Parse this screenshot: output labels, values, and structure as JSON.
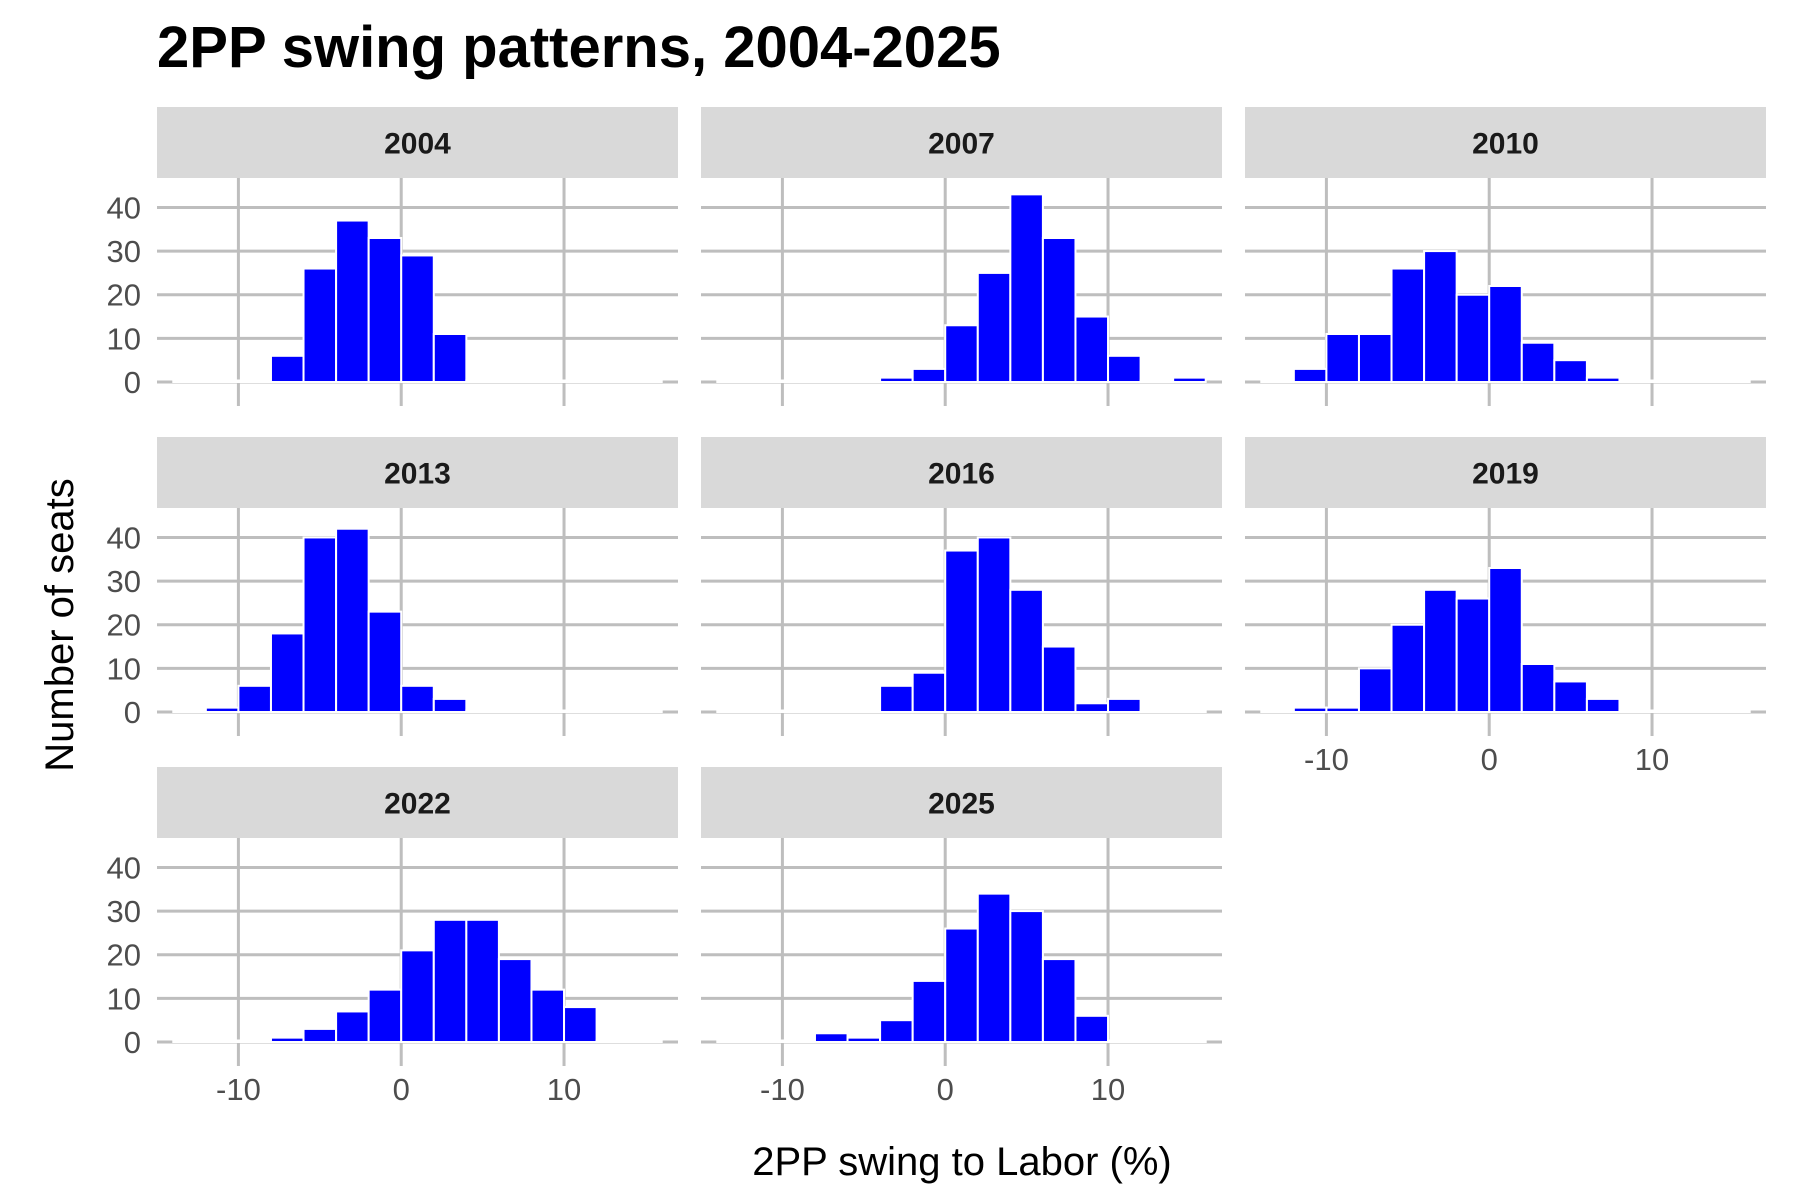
{
  "chart_data": {
    "type": "bar",
    "title": "2PP swing patterns, 2004-2025",
    "xlabel": "2PP swing to Labor (%)",
    "ylabel": "Number of seats",
    "bin_width": 2,
    "bin_centers": [
      -13,
      -11,
      -9,
      -7,
      -5,
      -3,
      -1,
      1,
      3,
      5,
      7,
      9,
      11,
      13,
      15
    ],
    "xlim": [
      -15,
      17
    ],
    "ylim": [
      0,
      44
    ],
    "x_ticks": [
      -10,
      0,
      10
    ],
    "x_tick_labels": [
      "-10",
      "0",
      "10"
    ],
    "y_ticks": [
      0,
      10,
      20,
      30,
      40
    ],
    "y_tick_labels": [
      "0",
      "10",
      "20",
      "30",
      "40"
    ],
    "grid": true,
    "panels": [
      {
        "label": "2004",
        "values": [
          0,
          0,
          0,
          6,
          26,
          37,
          33,
          29,
          11,
          0,
          0,
          0,
          0,
          0,
          0
        ]
      },
      {
        "label": "2007",
        "values": [
          0,
          0,
          0,
          0,
          0,
          1,
          3,
          13,
          25,
          43,
          33,
          15,
          6,
          0,
          1
        ]
      },
      {
        "label": "2010",
        "values": [
          0,
          3,
          11,
          11,
          26,
          30,
          20,
          22,
          9,
          5,
          1,
          0,
          0,
          0,
          0
        ]
      },
      {
        "label": "2013",
        "values": [
          0,
          1,
          6,
          18,
          40,
          42,
          23,
          6,
          3,
          0,
          0,
          0,
          0,
          0,
          0
        ]
      },
      {
        "label": "2016",
        "values": [
          0,
          0,
          0,
          0,
          0,
          6,
          9,
          37,
          40,
          28,
          15,
          2,
          3,
          0,
          0
        ]
      },
      {
        "label": "2019",
        "values": [
          0,
          1,
          1,
          10,
          20,
          28,
          26,
          33,
          11,
          7,
          3,
          0,
          0,
          0,
          0
        ]
      },
      {
        "label": "2022",
        "values": [
          0,
          0,
          0,
          1,
          3,
          7,
          12,
          21,
          28,
          28,
          19,
          12,
          8,
          0,
          0
        ]
      },
      {
        "label": "2025",
        "values": [
          0,
          0,
          0,
          2,
          1,
          5,
          14,
          26,
          34,
          30,
          19,
          6,
          0,
          0,
          0
        ]
      }
    ]
  },
  "colors": {
    "bar_fill": "#0000ff",
    "bar_outline": "#ffffff",
    "strip_background": "#d9d9d9",
    "grid": "#bebebe"
  }
}
